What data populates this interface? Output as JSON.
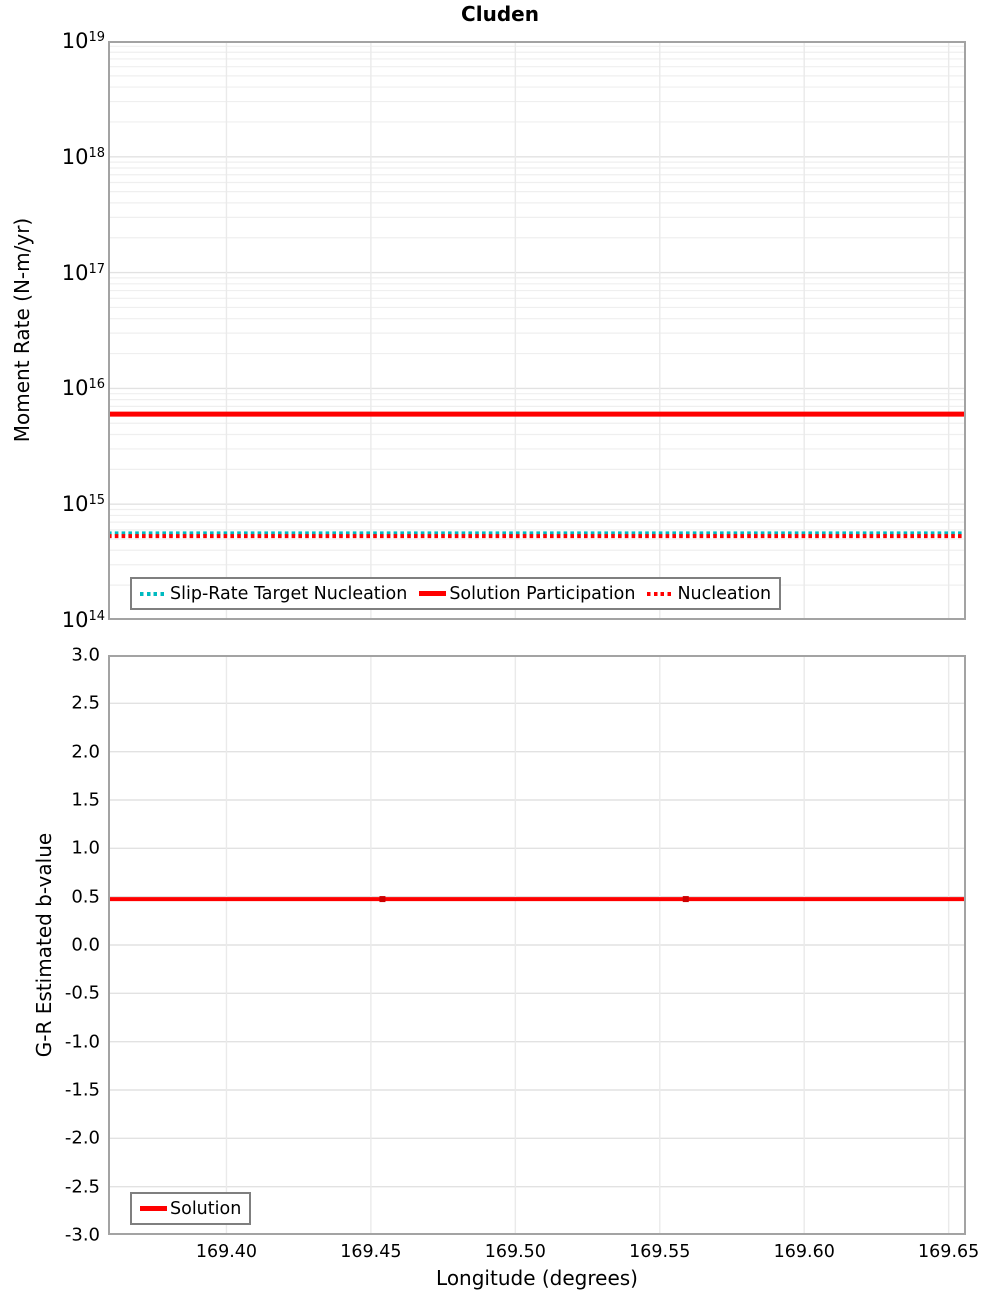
{
  "figure_title": "Cluden",
  "colors": {
    "red": "#FF0000",
    "red_marker": "#CC0000",
    "teal": "#00BAC0",
    "grid_major": "#E2E2E2",
    "grid_minor": "#EFEFEF",
    "grid_vertical": "#EAEAEA",
    "axis_border": "#A3A3A3",
    "legend_border": "#7F7F7F"
  },
  "chart_data": [
    {
      "type": "line",
      "title": "Cluden",
      "ylabel": "Moment Rate (N-m/yr)",
      "yscale": "log",
      "ylim": [
        100000000000000.0,
        1e+19
      ],
      "xlim": [
        169.359,
        169.656
      ],
      "grid": true,
      "legend_position": "lower left",
      "x_tick_values": [
        169.4,
        169.45,
        169.5,
        169.55,
        169.6,
        169.65
      ],
      "y_tick_base": "10",
      "y_tick_exponents": [
        "19",
        "18",
        "17",
        "16",
        "15",
        "14"
      ],
      "series": [
        {
          "name": "Slip-Rate Target Nucleation",
          "style": "dotted",
          "color": "#00BAC0",
          "x": [
            169.359,
            169.656
          ],
          "y": [
            560000000000000.0,
            560000000000000.0
          ]
        },
        {
          "name": "Solution Participation",
          "style": "solid",
          "color": "#FF0000",
          "x": [
            169.359,
            169.656
          ],
          "y": [
            6000000000000000.0,
            6000000000000000.0
          ]
        },
        {
          "name": "Nucleation",
          "style": "dotted",
          "color": "#FF0000",
          "x": [
            169.359,
            169.656
          ],
          "y": [
            530000000000000.0,
            530000000000000.0
          ]
        }
      ]
    },
    {
      "type": "line",
      "ylabel": "G-R Estimated b-value",
      "xlabel": "Longitude (degrees)",
      "yscale": "linear",
      "ylim": [
        -3.0,
        3.0
      ],
      "xlim": [
        169.359,
        169.656
      ],
      "grid": true,
      "legend_position": "lower left",
      "x_tick_values": [
        169.4,
        169.45,
        169.5,
        169.55,
        169.6,
        169.65
      ],
      "x_tick_labels": [
        "169.40",
        "169.45",
        "169.50",
        "169.55",
        "169.60",
        "169.65"
      ],
      "y_tick_labels": [
        "3.0",
        "2.5",
        "2.0",
        "1.5",
        "1.0",
        "0.5",
        "0.0",
        "-0.5",
        "-1.0",
        "-1.5",
        "-2.0",
        "-2.5",
        "-3.0"
      ],
      "y_tick_values": [
        3.0,
        2.5,
        2.0,
        1.5,
        1.0,
        0.5,
        0.0,
        -0.5,
        -1.0,
        -1.5,
        -2.0,
        -2.5,
        -3.0
      ],
      "series": [
        {
          "name": "Solution",
          "style": "solid",
          "color": "#FF0000",
          "x": [
            169.359,
            169.454,
            169.559,
            169.656
          ],
          "y": [
            0.475,
            0.475,
            0.475,
            0.475
          ],
          "marker_x": [
            169.454,
            169.559
          ],
          "marker_color": "#CC0000"
        }
      ]
    }
  ]
}
